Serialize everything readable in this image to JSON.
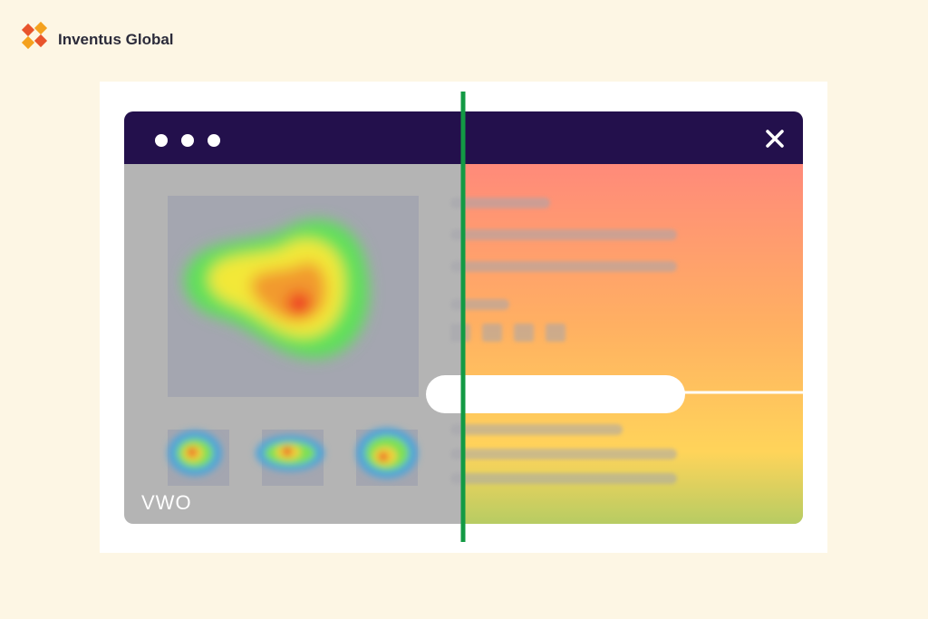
{
  "brand": {
    "name": "Inventus Global"
  },
  "watermark": "VWO"
}
